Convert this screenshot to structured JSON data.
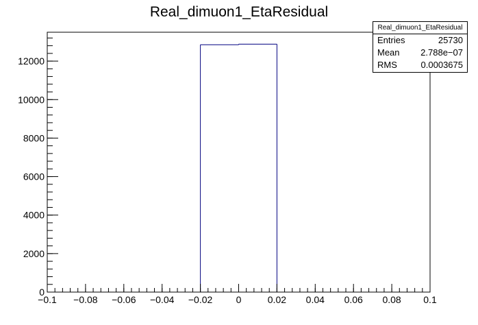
{
  "chart_data": {
    "type": "bar",
    "title": "Real_dimuon1_EtaResidual",
    "xlabel": "",
    "ylabel": "",
    "xlim": [
      -0.1,
      0.1
    ],
    "ylim": [
      0,
      13500
    ],
    "x_ticks": [
      -0.1,
      -0.08,
      -0.06,
      -0.04,
      -0.02,
      0,
      0.02,
      0.04,
      0.06,
      0.08,
      0.1
    ],
    "x_tick_labels": [
      "−0.1",
      "−0.08",
      "−0.06",
      "−0.04",
      "−0.02",
      "0",
      "0.02",
      "0.04",
      "0.06",
      "0.08",
      "0.1"
    ],
    "y_ticks": [
      0,
      2000,
      4000,
      6000,
      8000,
      10000,
      12000
    ],
    "y_tick_labels": [
      "0",
      "2000",
      "4000",
      "6000",
      "8000",
      "10000",
      "12000"
    ],
    "bins": [
      {
        "x_low": -0.02,
        "x_high": 0.0,
        "value": 12850
      },
      {
        "x_low": 0.0,
        "x_high": 0.02,
        "value": 12880
      }
    ],
    "line_color": "#000080",
    "grid": false,
    "legend": "none"
  },
  "stats": {
    "title": "Real_dimuon1_EtaResidual",
    "rows": [
      {
        "label": "Entries",
        "value": "25730"
      },
      {
        "label": "Mean",
        "value": "2.788e−07"
      },
      {
        "label": "RMS",
        "value": "0.0003675"
      }
    ]
  }
}
